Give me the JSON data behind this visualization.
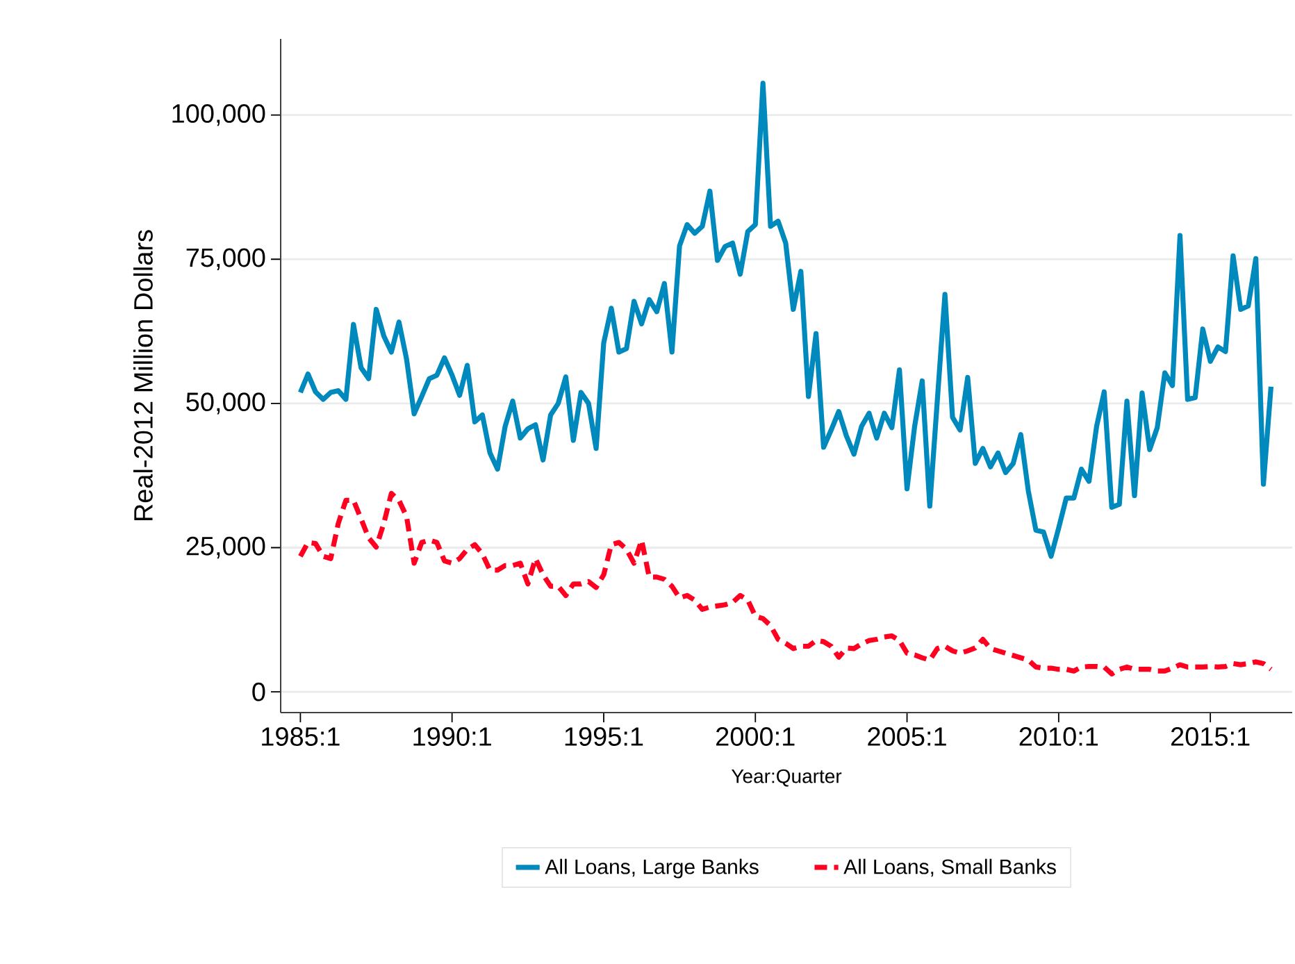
{
  "chart_data": {
    "type": "line",
    "xlabel": "Year:Quarter",
    "ylabel": "Real-2012 Million Dollars",
    "categories": [
      "1985:1",
      null,
      null,
      null,
      null,
      null,
      null,
      null,
      null,
      null,
      null,
      null,
      null,
      null,
      null,
      null,
      null,
      null,
      null,
      null,
      "1990:1",
      null,
      null,
      null,
      null,
      null,
      null,
      null,
      null,
      null,
      null,
      null,
      null,
      null,
      null,
      null,
      null,
      null,
      null,
      null,
      "1995:1",
      null,
      null,
      null,
      null,
      null,
      null,
      null,
      null,
      null,
      null,
      null,
      null,
      null,
      null,
      null,
      null,
      null,
      null,
      null,
      "2000:1",
      null,
      null,
      null,
      null,
      null,
      null,
      null,
      null,
      null,
      null,
      null,
      null,
      null,
      null,
      null,
      null,
      null,
      null,
      null,
      "2005:1",
      null,
      null,
      null,
      null,
      null,
      null,
      null,
      null,
      null,
      null,
      null,
      null,
      null,
      null,
      null,
      null,
      null,
      null,
      null,
      "2010:1",
      null,
      null,
      null,
      null,
      null,
      null,
      null,
      null,
      null,
      null,
      null,
      null,
      null,
      null,
      null,
      null,
      null,
      null,
      null,
      "2015:1",
      null,
      null,
      null,
      null,
      null,
      null,
      null,
      null
    ],
    "series": [
      {
        "name": "All Loans, Large Banks",
        "color": "#0089bd",
        "line_style": "solid",
        "values": [
          51900,
          55100,
          52000,
          50700,
          51900,
          52200,
          50700,
          63700,
          56200,
          54300,
          66300,
          61700,
          58900,
          64100,
          57700,
          48200,
          51200,
          54300,
          54900,
          57900,
          54900,
          51400,
          56600,
          46800,
          48000,
          41400,
          38600,
          46000,
          50400,
          44000,
          45600,
          46300,
          40200,
          48000,
          50000,
          54600,
          43600,
          51900,
          50000,
          42200,
          60500,
          66500,
          58900,
          59500,
          67700,
          63800,
          68000,
          65900,
          70800,
          58900,
          77300,
          81000,
          79500,
          80700,
          86800,
          74800,
          77200,
          77800,
          72400,
          79800,
          81000,
          105500,
          80700,
          81600,
          77800,
          66300,
          72900,
          51200,
          62100,
          42400,
          45400,
          48600,
          44400,
          41200,
          46000,
          48300,
          44000,
          48300,
          45800,
          55800,
          35200,
          46000,
          53900,
          32200,
          50600,
          68900,
          47600,
          45400,
          54500,
          39600,
          42200,
          39000,
          41400,
          38000,
          39600,
          44600,
          34800,
          28000,
          27700,
          23500,
          28400,
          33600,
          33600,
          38600,
          36500,
          46000,
          52000,
          32000,
          32500,
          50400,
          34000,
          51800,
          42000,
          45800,
          55300,
          53100,
          79100,
          50700,
          51000,
          62900,
          57300,
          59800,
          59000,
          75600,
          66300,
          66900,
          75100,
          36000,
          52900
        ]
      },
      {
        "name": "All Loans, Small Banks",
        "color": "#ff0020",
        "line_style": "dashed",
        "values": [
          23500,
          25900,
          25700,
          23500,
          23100,
          29200,
          33200,
          33200,
          30000,
          26700,
          25100,
          29200,
          34400,
          33200,
          30400,
          22300,
          25900,
          26300,
          25900,
          22700,
          22300,
          23100,
          24700,
          25500,
          23900,
          21100,
          21100,
          21900,
          21900,
          22300,
          18700,
          23100,
          20300,
          18300,
          18300,
          16700,
          18700,
          18700,
          19100,
          18100,
          20300,
          25500,
          25900,
          24700,
          22300,
          26300,
          19900,
          19900,
          19500,
          18300,
          16300,
          16700,
          15900,
          14300,
          14700,
          14900,
          15100,
          15500,
          16700,
          15900,
          13100,
          12700,
          11500,
          9100,
          8400,
          7500,
          7900,
          7900,
          8900,
          8700,
          7900,
          6000,
          7600,
          7500,
          8300,
          8900,
          9100,
          9500,
          9700,
          8900,
          6700,
          6400,
          5900,
          5500,
          7500,
          7900,
          7100,
          6700,
          7100,
          7600,
          9100,
          7500,
          7100,
          6700,
          6300,
          5900,
          5500,
          4300,
          4100,
          4100,
          3900,
          3900,
          3600,
          4300,
          4400,
          4400,
          4300,
          3100,
          3900,
          4300,
          3900,
          3900,
          3900,
          3600,
          3600,
          4100,
          4700,
          4300,
          4300,
          4300,
          4400,
          4300,
          4400,
          4900,
          4700,
          4900,
          5200,
          4900,
          3900
        ]
      }
    ],
    "ylim": [
      -3600,
      113200
    ],
    "yticks": [
      {
        "value": 0,
        "label": "0"
      },
      {
        "value": 25000,
        "label": "25,000"
      },
      {
        "value": 50000,
        "label": "50,000"
      },
      {
        "value": 75000,
        "label": "75,000"
      },
      {
        "value": 100000,
        "label": "100,000"
      }
    ],
    "grid": "y",
    "legend": "bottom",
    "marker": "none"
  }
}
